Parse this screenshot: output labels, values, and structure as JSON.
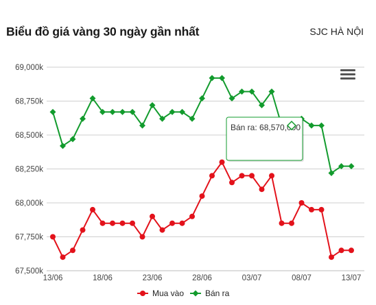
{
  "header": {
    "title": "Biểu đồ giá vàng 30 ngày gần nhất",
    "location": "SJC HÀ NỘI"
  },
  "toolbar": {
    "menu_icon": "hamburger-menu-icon"
  },
  "chart_data": {
    "type": "line",
    "x": [
      "13/06",
      "14/06",
      "15/06",
      "16/06",
      "17/06",
      "18/06",
      "19/06",
      "20/06",
      "21/06",
      "22/06",
      "23/06",
      "24/06",
      "25/06",
      "26/06",
      "27/06",
      "28/06",
      "29/06",
      "30/06",
      "01/07",
      "02/07",
      "03/07",
      "04/07",
      "05/07",
      "06/07",
      "07/07",
      "08/07",
      "09/07",
      "10/07",
      "11/07",
      "12/07",
      "13/07"
    ],
    "xticks": [
      "13/06",
      "18/06",
      "23/06",
      "28/06",
      "03/07",
      "08/07",
      "13/07"
    ],
    "yticks": [
      "67,500k",
      "67,750k",
      "68,000k",
      "68,250k",
      "68,500k",
      "68,750k",
      "69,000k"
    ],
    "ylim": [
      67500,
      69000
    ],
    "grid": true,
    "legend_position": "bottom-center",
    "series": [
      {
        "name": "Mua vào",
        "color": "#e3121b",
        "values": [
          67750,
          67600,
          67650,
          67800,
          67950,
          67850,
          67850,
          67850,
          67850,
          67750,
          67900,
          67800,
          67850,
          67850,
          67900,
          68050,
          68200,
          68300,
          68150,
          68200,
          68200,
          68100,
          68200,
          67850,
          67850,
          68000,
          67950,
          67950,
          67600,
          67650,
          67650
        ]
      },
      {
        "name": "Bán ra",
        "color": "#129b2d",
        "values": [
          68670,
          68420,
          68470,
          68620,
          68770,
          68670,
          68670,
          68670,
          68670,
          68570,
          68720,
          68620,
          68670,
          68670,
          68620,
          68770,
          68920,
          68920,
          68770,
          68820,
          68820,
          68720,
          68820,
          68570,
          68570,
          68620,
          68570,
          68570,
          68220,
          68270,
          68270
        ]
      }
    ],
    "tooltip": {
      "label": "Bán ra: 68,570,000",
      "point_index": 24
    }
  }
}
